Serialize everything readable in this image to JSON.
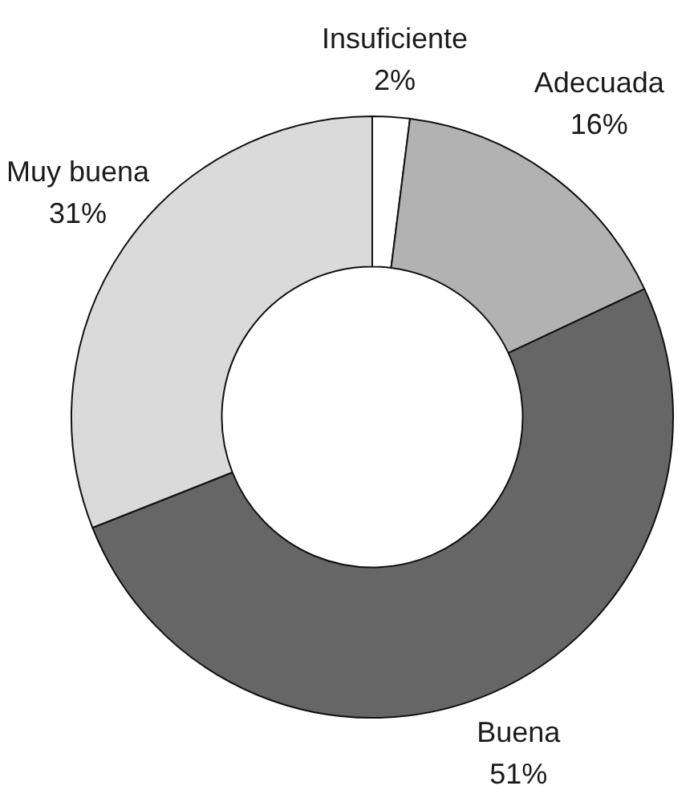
{
  "chart_data": {
    "type": "donut",
    "categories": [
      "Insuficiente",
      "Adecuada",
      "Buena",
      "Muy buena"
    ],
    "values": [
      2,
      16,
      51,
      31
    ],
    "colors": [
      "#ffffff",
      "#b2b2b2",
      "#666666",
      "#dadada"
    ],
    "value_labels": [
      "2%",
      "16%",
      "51%",
      "31%"
    ]
  }
}
